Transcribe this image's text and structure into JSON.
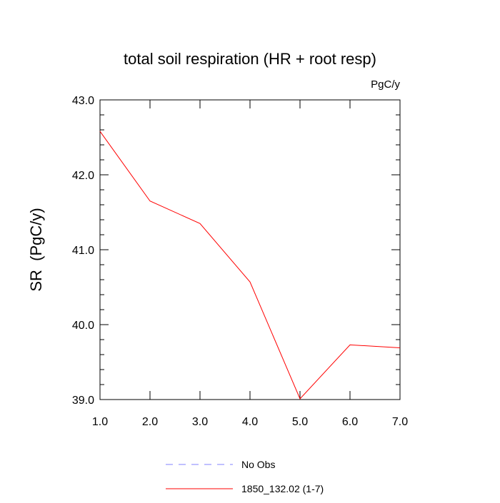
{
  "chart_data": {
    "type": "line",
    "title": "total soil respiration (HR + root resp)",
    "units": "PgC/y",
    "xlabel": "",
    "ylabel": "SR  (PgC/y)",
    "xlim": [
      1.0,
      7.0
    ],
    "ylim": [
      39.0,
      43.0
    ],
    "x_ticks": [
      "1.0",
      "2.0",
      "3.0",
      "4.0",
      "5.0",
      "6.0",
      "7.0"
    ],
    "y_ticks": [
      "39.0",
      "40.0",
      "41.0",
      "42.0",
      "43.0"
    ],
    "grid": false,
    "legend_position": "bottom",
    "series": [
      {
        "name": "1850_132.02 (1-7)",
        "color": "#ff0000",
        "x": [
          1,
          2,
          3,
          4,
          5,
          6,
          7
        ],
        "values": [
          42.58,
          41.65,
          41.35,
          40.57,
          39.01,
          39.73,
          39.69
        ]
      }
    ],
    "legend": [
      {
        "label": "No Obs",
        "color": "#8080ff",
        "style": "dashed"
      },
      {
        "label": "1850_132.02 (1-7)",
        "color": "#ff0000",
        "style": "solid"
      }
    ]
  }
}
